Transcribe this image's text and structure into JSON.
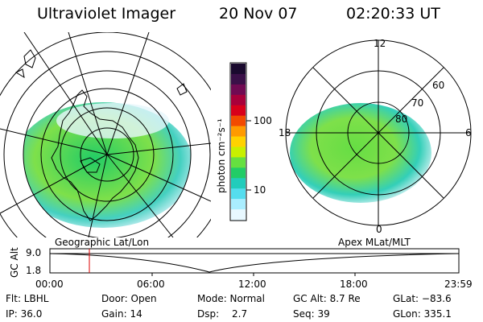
{
  "header": {
    "instrument": "Ultraviolet Imager",
    "date": "20 Nov 07",
    "time": "02:20:33 UT"
  },
  "panels": {
    "left_label": "Geographic Lat/Lon",
    "right_label": "Apex MLat/MLT"
  },
  "colorbar": {
    "label": "photon cm⁻²s⁻¹",
    "ticks": [
      "100",
      "10"
    ],
    "colors": [
      "#1a0a2e",
      "#3a1048",
      "#700a52",
      "#a8003a",
      "#d8001a",
      "#f24a00",
      "#ff9a00",
      "#ffd200",
      "#c8f000",
      "#66e040",
      "#22cc66",
      "#22ccbb",
      "#55ddee",
      "#aaeeff",
      "#e8f8ff"
    ]
  },
  "polar_labels": {
    "mlt_top": "12",
    "mlt_left": "18",
    "mlt_right": "6",
    "mlt_bottom": "0",
    "lat_60": "60",
    "lat_70": "70",
    "lat_80": "80"
  },
  "altitude_plot": {
    "axis_label": "GC Alt",
    "y_ticks": [
      "9.0",
      "1.8"
    ],
    "x_ticks": [
      "00:00",
      "06:00",
      "12:00",
      "18:00",
      "23:59"
    ]
  },
  "info": {
    "flt": "Flt: LBHL",
    "ip": "IP: 36.0",
    "door": "Door: Open",
    "gain": "Gain: 14",
    "mode": "Mode: Normal",
    "dsp_label": "Dsp:",
    "dsp_val": "2.7",
    "gcalt": "GC Alt: 8.7 Re",
    "seq": "Seq: 39",
    "glat": "GLat: −83.6",
    "glon": "GLon: 335.1"
  }
}
